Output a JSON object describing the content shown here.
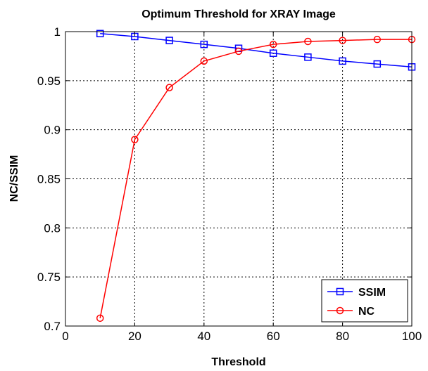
{
  "chart_data": {
    "type": "line",
    "title": "Optimum Threshold for XRAY Image",
    "xlabel": "Threshold",
    "ylabel": "NC/SSIM",
    "xlim": [
      0,
      100
    ],
    "ylim": [
      0.7,
      1
    ],
    "xticks": [
      0,
      20,
      40,
      60,
      80,
      100
    ],
    "yticks": [
      0.7,
      0.75,
      0.8,
      0.85,
      0.9,
      0.95,
      1
    ],
    "xtick_labels": [
      "0",
      "20",
      "40",
      "60",
      "80",
      "100"
    ],
    "ytick_labels": [
      "0.7",
      "0.75",
      "0.8",
      "0.85",
      "0.9",
      "0.95",
      "1"
    ],
    "grid": true,
    "legend_position": "bottom-right",
    "x": [
      10,
      20,
      30,
      40,
      50,
      60,
      70,
      80,
      90,
      100
    ],
    "series": [
      {
        "name": "SSIM",
        "color": "#0000ff",
        "marker": "square",
        "values": [
          0.998,
          0.995,
          0.991,
          0.987,
          0.983,
          0.978,
          0.974,
          0.97,
          0.967,
          0.964
        ]
      },
      {
        "name": "NC",
        "color": "#ff0000",
        "marker": "circle",
        "values": [
          0.708,
          0.89,
          0.943,
          0.97,
          0.98,
          0.987,
          0.99,
          0.991,
          0.992,
          0.992
        ]
      }
    ]
  }
}
